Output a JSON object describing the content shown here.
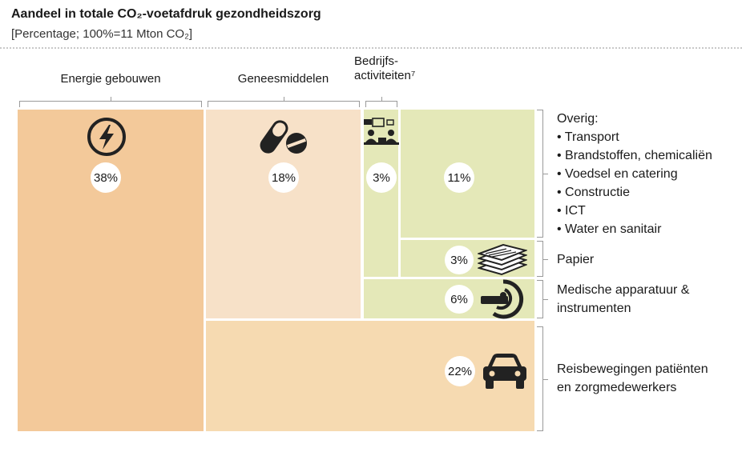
{
  "chart_data": {
    "type": "treemap",
    "title": "Aandeel in totale CO₂-voetafdruk gezondheidszorg",
    "subtitle": "[Percentage; 100%=11 Mton CO₂]",
    "unit": "%",
    "groups": {
      "energie": "Energie gebouwen",
      "genees": "Geneesmiddelen",
      "bedrijfs": "Bedrijfs-activiteiten⁷"
    },
    "segments": [
      {
        "key": "energie",
        "value": 38,
        "label": "38%",
        "color": "#f3c99a",
        "icon": "lightning-icon"
      },
      {
        "key": "genees",
        "value": 18,
        "label": "18%",
        "color": "#f7e1c8",
        "icon": "pills-icon"
      },
      {
        "key": "bedrijfs",
        "value": 3,
        "label": "3%",
        "color": "#e4e8b8",
        "icon": "office-desk-icon"
      },
      {
        "key": "overig",
        "value": 11,
        "label": "11%",
        "color": "#e4e8b8",
        "icon": ""
      },
      {
        "key": "papier",
        "value": 3,
        "label": "3%",
        "color": "#e4e8b8",
        "icon": "paper-stack-icon"
      },
      {
        "key": "medisch",
        "value": 6,
        "label": "6%",
        "color": "#e4e8b8",
        "icon": "mri-scanner-icon"
      },
      {
        "key": "reis",
        "value": 22,
        "label": "22%",
        "color": "#f6dab1",
        "icon": "car-icon"
      }
    ],
    "legend": {
      "overig_title": "Overig:",
      "overig_items": [
        "Transport",
        "Brandstoffen, chemicaliën",
        "Voedsel en catering",
        "Constructie",
        "ICT",
        "Water en sanitair"
      ],
      "papier": "Papier",
      "medisch_line1": "Medische apparatuur &",
      "medisch_line2": "instrumenten",
      "reis_line1": "Reisbewegingen patiënten",
      "reis_line2": "en zorgmedewerkers"
    }
  }
}
